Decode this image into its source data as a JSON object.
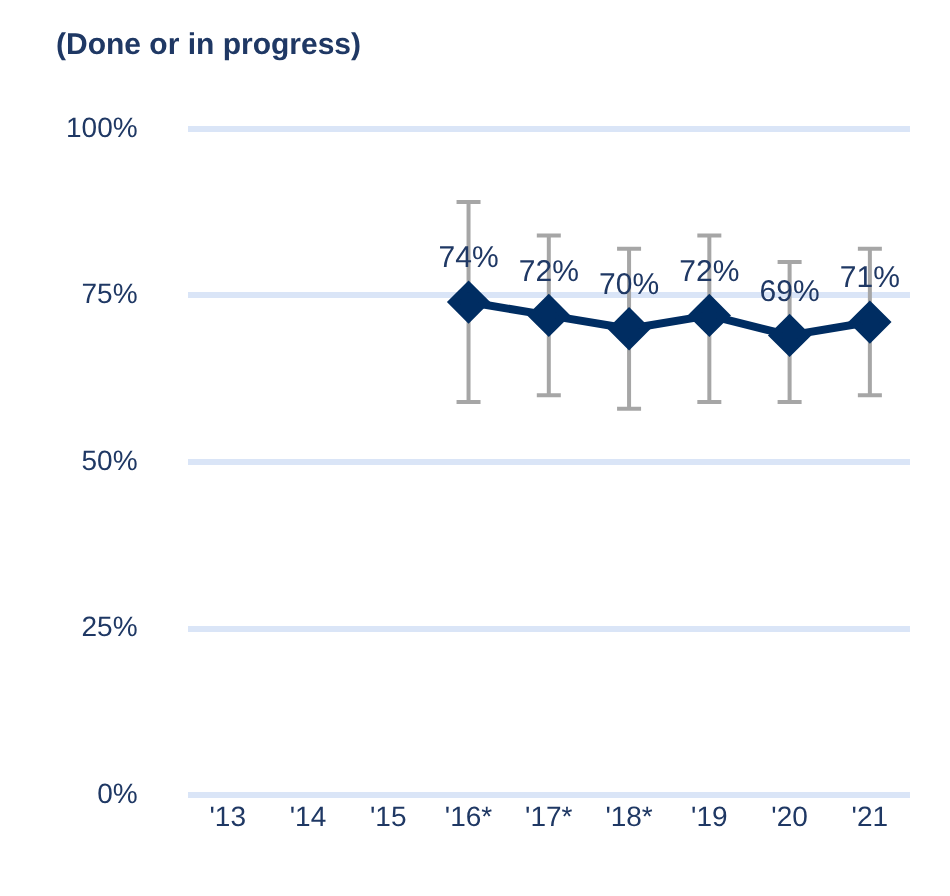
{
  "chart_data": {
    "type": "line",
    "subtitle": "(Done or in progress)",
    "categories": [
      "'13",
      "'14",
      "'15",
      "'16*",
      "'17*",
      "'18*",
      "'19",
      "'20",
      "'21"
    ],
    "series": [
      {
        "color": "#002d62",
        "values": [
          null,
          null,
          null,
          74,
          72,
          70,
          72,
          69,
          71
        ],
        "errors": [
          null,
          null,
          null,
          [
            59,
            89
          ],
          [
            60,
            84
          ],
          [
            58,
            82
          ],
          [
            59,
            84
          ],
          [
            59,
            80
          ],
          [
            60,
            82
          ]
        ],
        "value_labels": [
          null,
          null,
          null,
          "74%",
          "72%",
          "70%",
          "72%",
          "69%",
          "71%"
        ]
      }
    ],
    "ylim": [
      0,
      100
    ],
    "yticks": [
      {
        "value": 0,
        "label": "0%"
      },
      {
        "value": 25,
        "label": "25%"
      },
      {
        "value": 50,
        "label": "50%"
      },
      {
        "value": 75,
        "label": "75%"
      },
      {
        "value": 100,
        "label": "100%"
      }
    ],
    "grid": "y",
    "marker": "diamond",
    "line_style": "solid",
    "legend": false
  }
}
